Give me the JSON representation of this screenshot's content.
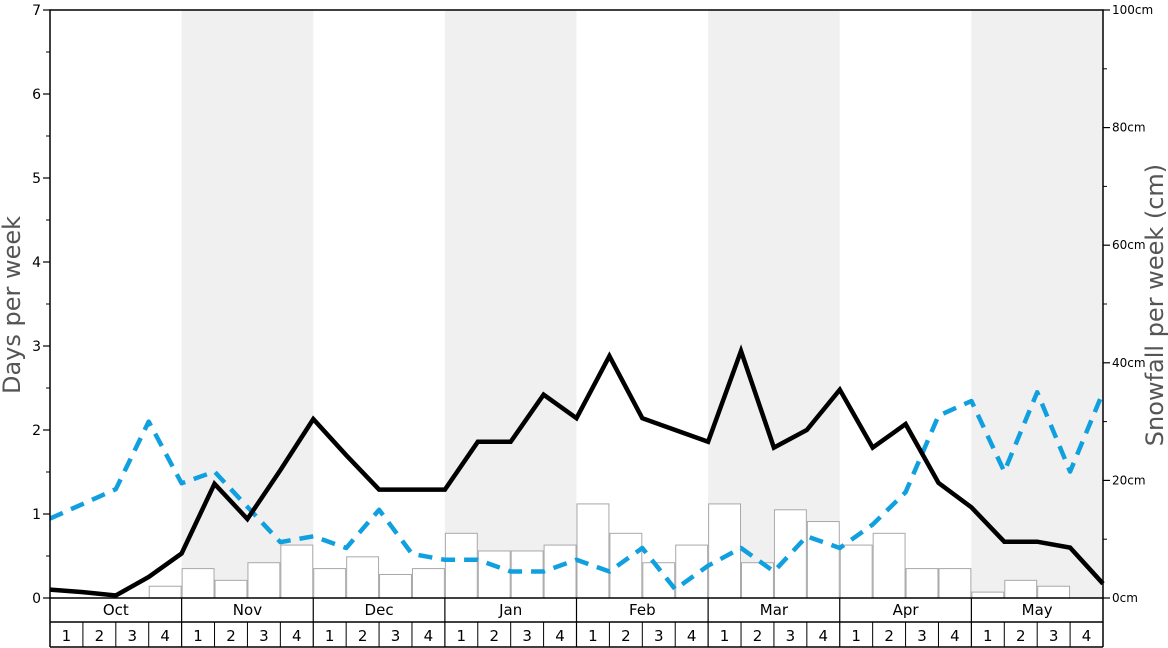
{
  "chart_data": {
    "type": "bar",
    "ylabel_left": "Days per week",
    "ylabel_right": "Snowfall per week (cm)",
    "left_axis": {
      "min": 0,
      "max": 7,
      "ticks": [
        "0",
        "1",
        "2",
        "3",
        "4",
        "5",
        "6",
        "7"
      ]
    },
    "right_axis": {
      "min": 0,
      "max": 100,
      "ticks": [
        "0cm",
        "20cm",
        "40cm",
        "60cm",
        "80cm",
        "100cm"
      ]
    },
    "months": [
      "Oct",
      "Nov",
      "Dec",
      "Jan",
      "Feb",
      "Mar",
      "Apr",
      "May"
    ],
    "week_labels": [
      "1",
      "2",
      "3",
      "4"
    ],
    "series": [
      {
        "kind": "bar",
        "axis": "right",
        "values": [
          0,
          0,
          0,
          2,
          5,
          3,
          6,
          9,
          5,
          7,
          4,
          5,
          11,
          8,
          8,
          9,
          16,
          11,
          6,
          9,
          16,
          6,
          15,
          13,
          9,
          11,
          5,
          5,
          1,
          3,
          2,
          0
        ]
      },
      {
        "kind": "solid-line",
        "axis": "left",
        "color": "#000000",
        "values": [
          0.1,
          0.07,
          0.03,
          0.25,
          0.53,
          1.36,
          0.94,
          1.52,
          2.13,
          1.7,
          1.29,
          1.29,
          1.29,
          1.86,
          1.86,
          2.42,
          2.14,
          2.88,
          2.14,
          2.0,
          1.86,
          2.94,
          1.79,
          2.0,
          2.48,
          1.79,
          2.07,
          1.37,
          1.08,
          0.67,
          0.67,
          0.6,
          0.17
        ]
      },
      {
        "kind": "dashed-line",
        "axis": "right",
        "color": "#10a0e0",
        "values": [
          13.5,
          16,
          18.5,
          30,
          19.5,
          21.5,
          15.5,
          9.5,
          10.5,
          8.5,
          15,
          7.5,
          6.5,
          6.5,
          4.5,
          4.5,
          6.5,
          4.5,
          8.5,
          1.5,
          5.5,
          8.5,
          4.5,
          10.5,
          8.5,
          12.5,
          18,
          31,
          33.5,
          21.5,
          35,
          21.5,
          35
        ]
      }
    ]
  }
}
